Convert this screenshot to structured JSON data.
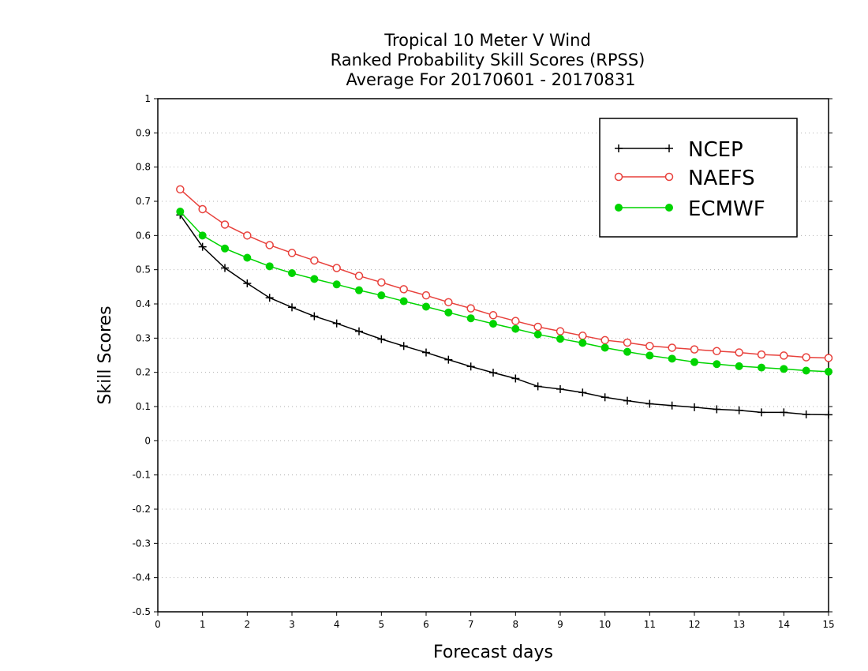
{
  "chart_data": {
    "type": "line",
    "title_lines": [
      "Tropical 10 Meter V Wind",
      "Ranked Probability Skill Scores (RPSS)",
      "Average For 20170601 - 20170831"
    ],
    "xlabel": "Forecast days",
    "ylabel": "Skill Scores",
    "xlim": [
      0,
      15
    ],
    "ylim": [
      -0.5,
      1
    ],
    "x_ticks": [
      "0",
      "1",
      "2",
      "3",
      "4",
      "5",
      "6",
      "7",
      "8",
      "9",
      "10",
      "11",
      "12",
      "13",
      "14",
      "15"
    ],
    "y_ticks": [
      "1",
      "0.9",
      "0.8",
      "0.7",
      "0.6",
      "0.5",
      "0.4",
      "0.3",
      "0.2",
      "0.1",
      "0",
      "-0.1",
      "-0.2",
      "-0.3",
      "-0.4",
      "-0.5"
    ],
    "grid": true,
    "legend_position": "top-right",
    "x": [
      0.5,
      1,
      1.5,
      2,
      2.5,
      3,
      3.5,
      4,
      4.5,
      5,
      5.5,
      6,
      6.5,
      7,
      7.5,
      8,
      8.5,
      9,
      9.5,
      10,
      10.5,
      11,
      11.5,
      12,
      12.5,
      13,
      13.5,
      14,
      14.5,
      15
    ],
    "series": [
      {
        "name": "NCEP",
        "color": "#000000",
        "marker": "plus",
        "values": [
          0.66,
          0.567,
          0.505,
          0.46,
          0.418,
          0.39,
          0.364,
          0.343,
          0.32,
          0.297,
          0.277,
          0.258,
          0.237,
          0.217,
          0.199,
          0.182,
          0.159,
          0.151,
          0.141,
          0.127,
          0.117,
          0.108,
          0.103,
          0.098,
          0.092,
          0.089,
          0.083,
          0.083,
          0.077,
          0.076
        ]
      },
      {
        "name": "NAEFS",
        "color": "#e8413c",
        "marker": "open-circle",
        "values": [
          0.735,
          0.677,
          0.632,
          0.6,
          0.572,
          0.549,
          0.527,
          0.505,
          0.482,
          0.463,
          0.443,
          0.425,
          0.405,
          0.387,
          0.367,
          0.35,
          0.333,
          0.32,
          0.307,
          0.294,
          0.287,
          0.277,
          0.272,
          0.267,
          0.262,
          0.258,
          0.252,
          0.249,
          0.244,
          0.242
        ]
      },
      {
        "name": "ECMWF",
        "color": "#00d400",
        "marker": "filled-circle",
        "values": [
          0.67,
          0.6,
          0.562,
          0.535,
          0.51,
          0.49,
          0.473,
          0.457,
          0.44,
          0.425,
          0.408,
          0.392,
          0.375,
          0.358,
          0.342,
          0.327,
          0.311,
          0.298,
          0.286,
          0.272,
          0.26,
          0.249,
          0.24,
          0.23,
          0.224,
          0.218,
          0.214,
          0.21,
          0.205,
          0.202
        ]
      }
    ]
  }
}
